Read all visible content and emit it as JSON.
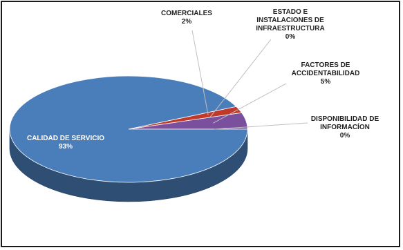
{
  "chart_data": {
    "type": "pie",
    "categories": [
      "CALIDAD DE SERVICIO",
      "COMERCIALES",
      "ESTADO E INSTALACIONES DE INFRAESTRUCTURA",
      "FACTORES DE ACCIDENTABILIDAD",
      "DISPONIBILIDAD DE INFORMACÍON"
    ],
    "values": [
      93,
      2,
      0,
      5,
      0
    ],
    "value_labels": [
      "93%",
      "2%",
      "0%",
      "5%",
      "0%"
    ],
    "label_lines": [
      [
        "CALIDAD DE SERVICIO"
      ],
      [
        "COMERCIALES"
      ],
      [
        "ESTADO E",
        "INSTALACIONES DE",
        "INFRAESTRUCTURA"
      ],
      [
        "FACTORES DE",
        "ACCIDENTABILIDAD"
      ],
      [
        "DISPONIBILIDAD DE",
        "INFORMACÍON"
      ]
    ],
    "colors": [
      "#4a7ebb",
      "#c0392b",
      "#7f9bc4",
      "#7a4f9e",
      "#5b9bd5"
    ],
    "style": "3d",
    "legend": "none"
  }
}
